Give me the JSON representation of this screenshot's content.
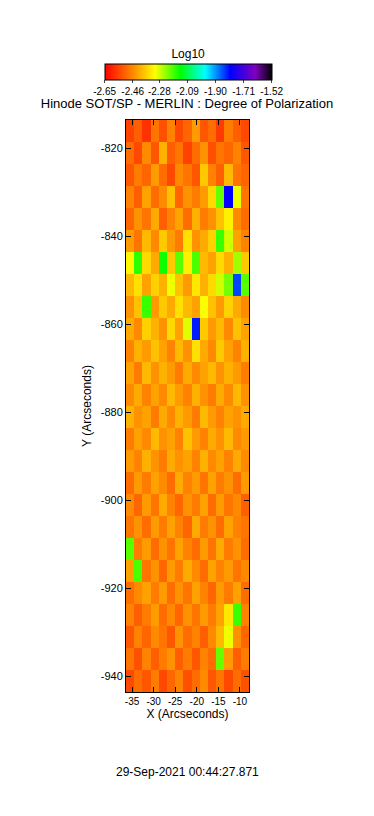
{
  "chart_data": {
    "type": "heatmap",
    "title": "Hinode SOT/SP - MERLIN : Degree of Polarization",
    "x_label": "X (Arcseconds)",
    "y_label": "Y (Arcseconds)",
    "annotations": [
      "29-Sep-2021 00:44:27.871"
    ],
    "xlim": [
      -36.4,
      -7.9
    ],
    "ylim": [
      -943.6,
      -813.6
    ],
    "xticks": [
      -35,
      -30,
      -25,
      -20,
      -15,
      -10
    ],
    "yticks": [
      -940,
      -920,
      -900,
      -880,
      -860,
      -840,
      -820
    ],
    "x": [
      -35.45,
      -33.55,
      -31.65,
      -29.75,
      -27.85,
      -25.95,
      -24.05,
      -22.15,
      -20.25,
      -18.35,
      -16.45,
      -14.55,
      -12.65,
      -10.75,
      -8.85
    ],
    "y": [
      -816.1,
      -821.1,
      -826.1,
      -831.1,
      -836.1,
      -841.1,
      -846.1,
      -851.1,
      -856.1,
      -861.1,
      -866.1,
      -871.1,
      -876.1,
      -881.1,
      -886.1,
      -891.1,
      -896.1,
      -901.1,
      -906.1,
      -911.1,
      -916.1,
      -921.1,
      -926.1,
      -931.1,
      -936.1,
      -941.1
    ],
    "z": [
      [
        -2.56,
        -2.52,
        -2.58,
        -2.49,
        -2.54,
        -2.47,
        -2.55,
        -2.51,
        -2.44,
        -2.53,
        -2.5,
        -2.57,
        -2.48,
        -2.52,
        -2.55
      ],
      [
        -2.5,
        -2.55,
        -2.46,
        -2.53,
        -2.41,
        -2.52,
        -2.49,
        -2.56,
        -2.5,
        -2.45,
        -2.54,
        -2.49,
        -2.51,
        -2.47,
        -2.53
      ],
      [
        -2.53,
        -2.48,
        -2.51,
        -2.44,
        -2.5,
        -2.55,
        -2.46,
        -2.49,
        -2.53,
        -2.38,
        -2.47,
        -2.52,
        -2.4,
        -2.49,
        -2.51
      ],
      [
        -2.47,
        -2.52,
        -2.43,
        -2.5,
        -2.46,
        -2.39,
        -2.51,
        -2.45,
        -2.48,
        -2.44,
        -2.36,
        -2.21,
        -1.8,
        -2.3,
        -2.49
      ],
      [
        -2.51,
        -2.45,
        -2.49,
        -2.42,
        -2.52,
        -2.47,
        -2.43,
        -2.5,
        -2.41,
        -2.48,
        -2.45,
        -2.39,
        -2.33,
        -2.46,
        -2.5
      ],
      [
        -2.44,
        -2.49,
        -2.4,
        -2.46,
        -2.38,
        -2.44,
        -2.48,
        -2.35,
        -2.45,
        -2.42,
        -2.37,
        -2.18,
        -2.28,
        -2.43,
        -2.47
      ],
      [
        -2.32,
        -2.17,
        -2.36,
        -2.42,
        -2.15,
        -2.38,
        -2.2,
        -2.33,
        -2.19,
        -2.4,
        -2.43,
        -2.36,
        -2.41,
        -2.25,
        -2.38
      ],
      [
        -2.4,
        -2.35,
        -2.43,
        -2.37,
        -2.41,
        -2.3,
        -2.39,
        -2.44,
        -2.34,
        -2.41,
        -2.36,
        -2.28,
        -2.22,
        -1.85,
        -2.2
      ],
      [
        -2.45,
        -2.39,
        -2.18,
        -2.44,
        -2.38,
        -2.42,
        -2.35,
        -2.4,
        -2.43,
        -2.31,
        -2.39,
        -2.44,
        -2.37,
        -2.42,
        -2.46
      ],
      [
        -2.42,
        -2.46,
        -2.37,
        -2.41,
        -2.45,
        -2.36,
        -2.43,
        -2.29,
        -1.82,
        -2.38,
        -2.44,
        -2.4,
        -2.46,
        -2.39,
        -2.43
      ],
      [
        -2.47,
        -2.41,
        -2.44,
        -2.39,
        -2.43,
        -2.47,
        -2.4,
        -2.45,
        -2.35,
        -2.42,
        -2.46,
        -2.38,
        -2.43,
        -2.47,
        -2.41
      ],
      [
        -2.43,
        -2.48,
        -2.4,
        -2.45,
        -2.41,
        -2.44,
        -2.48,
        -2.42,
        -2.46,
        -2.43,
        -2.4,
        -2.45,
        -2.41,
        -2.44,
        -2.48
      ],
      [
        -2.46,
        -2.42,
        -2.47,
        -2.43,
        -2.46,
        -2.4,
        -2.44,
        -2.47,
        -2.41,
        -2.45,
        -2.48,
        -2.42,
        -2.46,
        -2.4,
        -2.45
      ],
      [
        -2.41,
        -2.45,
        -2.43,
        -2.48,
        -2.42,
        -2.46,
        -2.41,
        -2.44,
        -2.48,
        -2.4,
        -2.44,
        -2.47,
        -2.43,
        -2.45,
        -2.42
      ],
      [
        -2.48,
        -2.43,
        -2.46,
        -2.4,
        -2.45,
        -2.43,
        -2.47,
        -2.39,
        -2.44,
        -2.47,
        -2.42,
        -2.45,
        -2.4,
        -2.46,
        -2.44
      ],
      [
        -2.44,
        -2.47,
        -2.41,
        -2.45,
        -2.48,
        -2.42,
        -2.45,
        -2.43,
        -2.47,
        -2.41,
        -2.46,
        -2.43,
        -2.47,
        -2.42,
        -2.46
      ],
      [
        -2.5,
        -2.44,
        -2.48,
        -2.43,
        -2.46,
        -2.5,
        -2.42,
        -2.47,
        -2.44,
        -2.49,
        -2.43,
        -2.48,
        -2.45,
        -2.5,
        -2.44
      ],
      [
        -2.46,
        -2.51,
        -2.44,
        -2.49,
        -2.42,
        -2.47,
        -2.51,
        -2.45,
        -2.48,
        -2.43,
        -2.5,
        -2.44,
        -2.49,
        -2.46,
        -2.52
      ],
      [
        -2.49,
        -2.45,
        -2.5,
        -2.44,
        -2.48,
        -2.43,
        -2.47,
        -2.51,
        -2.42,
        -2.48,
        -2.45,
        -2.5,
        -2.43,
        -2.47,
        -2.49
      ],
      [
        -2.2,
        -2.48,
        -2.44,
        -2.5,
        -2.45,
        -2.49,
        -2.43,
        -2.47,
        -2.5,
        -2.44,
        -2.49,
        -2.42,
        -2.48,
        -2.45,
        -2.5
      ],
      [
        -2.43,
        -2.19,
        -2.49,
        -2.45,
        -2.51,
        -2.44,
        -2.48,
        -2.42,
        -2.46,
        -2.5,
        -2.43,
        -2.47,
        -2.44,
        -2.49,
        -2.46
      ],
      [
        -2.5,
        -2.46,
        -2.43,
        -2.48,
        -2.44,
        -2.5,
        -2.45,
        -2.49,
        -2.43,
        -2.47,
        -2.51,
        -2.44,
        -2.48,
        -2.43,
        -2.5
      ],
      [
        -2.47,
        -2.52,
        -2.48,
        -2.44,
        -2.5,
        -2.46,
        -2.51,
        -2.45,
        -2.49,
        -2.44,
        -2.48,
        -2.43,
        -2.34,
        -2.18,
        -2.47
      ],
      [
        -2.53,
        -2.47,
        -2.51,
        -2.46,
        -2.49,
        -2.53,
        -2.45,
        -2.5,
        -2.47,
        -2.52,
        -2.46,
        -2.4,
        -2.3,
        -2.45,
        -2.51
      ],
      [
        -2.49,
        -2.54,
        -2.47,
        -2.52,
        -2.48,
        -2.45,
        -2.52,
        -2.48,
        -2.53,
        -2.47,
        -2.5,
        -2.21,
        -2.44,
        -2.52,
        -2.48
      ],
      [
        -2.55,
        -2.5,
        -2.53,
        -2.48,
        -2.55,
        -2.51,
        -2.47,
        -2.54,
        -2.5,
        -2.46,
        -2.53,
        -2.49,
        -2.55,
        -2.5,
        -2.54
      ]
    ],
    "colorbar": {
      "title": "Log10",
      "range": [
        -2.65,
        -1.52
      ],
      "ticks": [
        -2.65,
        -2.46,
        -2.28,
        -2.09,
        {
          "value": -1.9,
          "label": "-1.90"
        },
        -1.71,
        -1.52
      ]
    }
  }
}
